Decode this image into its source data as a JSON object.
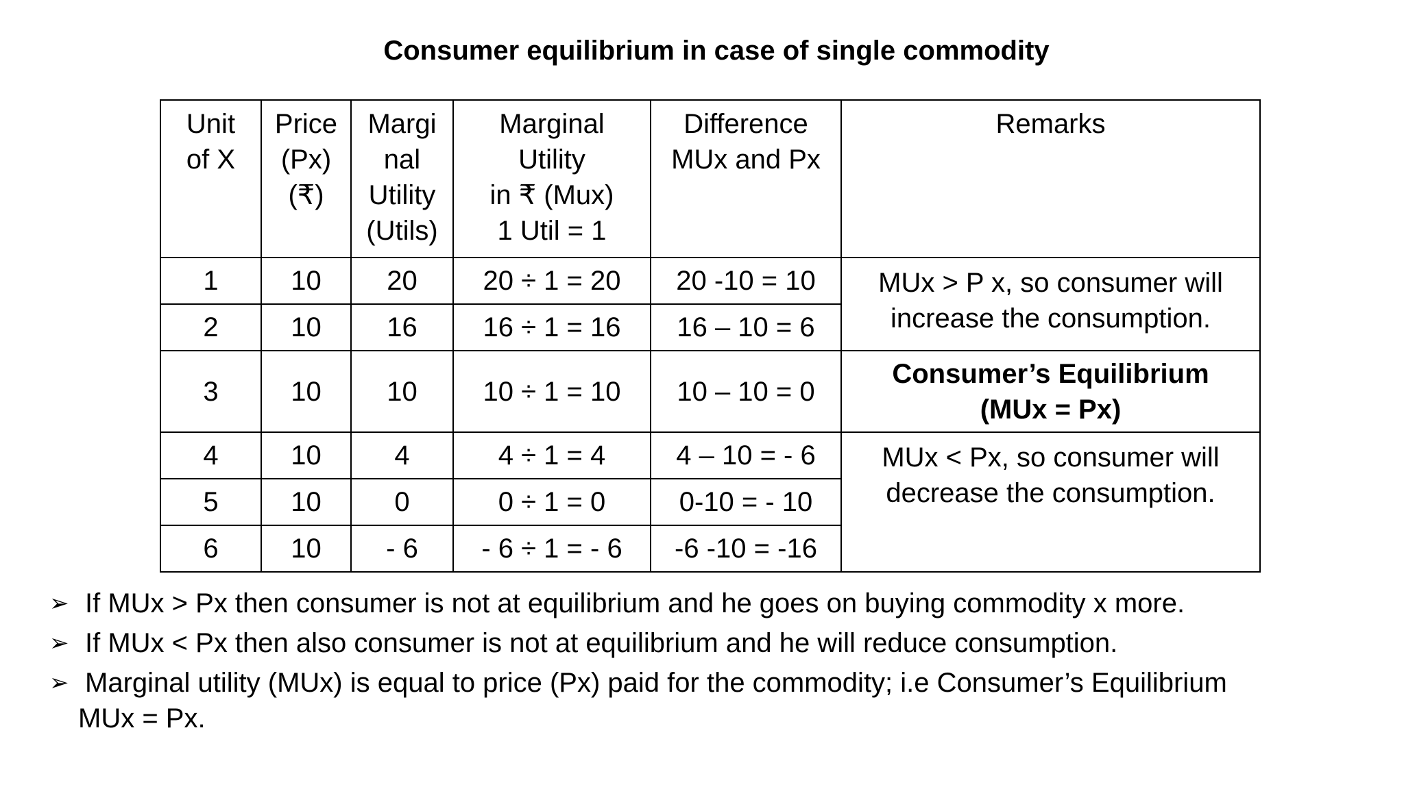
{
  "title": "Consumer equilibrium in case of single commodity",
  "table": {
    "headers": [
      [
        "Unit",
        "of X"
      ],
      [
        "Price",
        "(Px)",
        "(₹)"
      ],
      [
        "Margi",
        "nal",
        "Utility",
        "(Utils)"
      ],
      [
        "Marginal",
        "Utility",
        "in ₹ (Mux)",
        "1 Util = 1"
      ],
      [
        "Difference",
        "MUx and Px"
      ],
      [
        "Remarks"
      ]
    ],
    "rows": [
      [
        "1",
        "10",
        "20",
        "20 ÷ 1 = 20",
        "20 -10 = 10"
      ],
      [
        "2",
        "10",
        "16",
        "16 ÷ 1 = 16",
        "16 – 10 = 6"
      ],
      [
        "3",
        "10",
        "10",
        "10 ÷ 1 = 10",
        "10 – 10 = 0"
      ],
      [
        "4",
        "10",
        "4",
        "4 ÷ 1 = 4",
        "4 – 10 =  - 6"
      ],
      [
        "5",
        "10",
        "0",
        "0 ÷ 1 = 0",
        "0-10 = - 10"
      ],
      [
        "6",
        "10",
        "- 6",
        "- 6 ÷ 1 = - 6",
        "-6 -10 = -16"
      ]
    ],
    "remarks": [
      [
        "MUx > P x, so consumer will",
        "increase the consumption."
      ],
      [
        "Consumer’s Equilibrium",
        "(MUx = Px)"
      ],
      [
        "MUx < Px, so consumer will",
        "decrease the consumption."
      ]
    ]
  },
  "bullet_icon": "arrowhead-bullet",
  "bullet_glyph": "➢",
  "bullets": [
    {
      "lines": [
        "If MUx > Px then consumer is not at equilibrium and he goes on buying commodity x more."
      ]
    },
    {
      "lines": [
        "If MUx < Px then also consumer is not at equilibrium and he will reduce consumption."
      ]
    },
    {
      "lines": [
        "Marginal utility (MUx) is equal to price (Px) paid for the commodity; i.e Consumer’s Equilibrium",
        "MUx = Px."
      ]
    }
  ]
}
